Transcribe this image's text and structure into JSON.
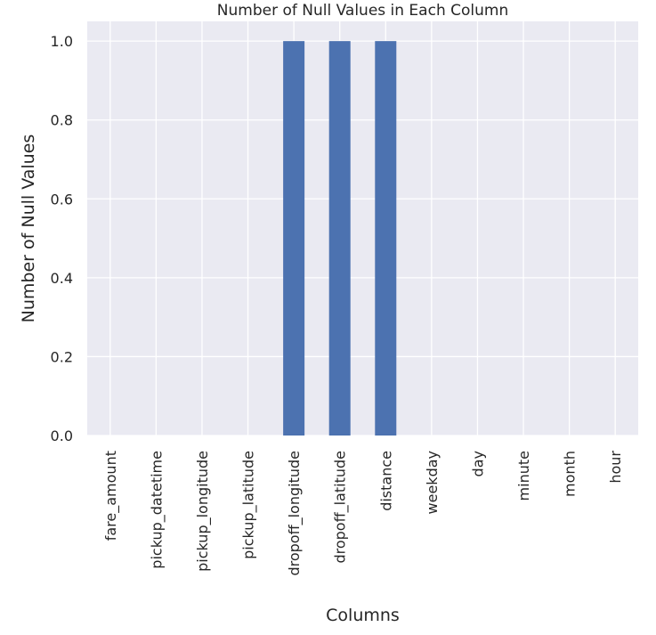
{
  "chart_data": {
    "type": "bar",
    "title": "Number of Null Values in Each Column",
    "xlabel": "Columns",
    "ylabel": "Number of Null Values",
    "categories": [
      "fare_amount",
      "pickup_datetime",
      "pickup_longitude",
      "pickup_latitude",
      "dropoff_longitude",
      "dropoff_latitude",
      "distance",
      "weekday",
      "day",
      "minute",
      "month",
      "hour"
    ],
    "values": [
      0,
      0,
      0,
      0,
      1,
      1,
      1,
      0,
      0,
      0,
      0,
      0
    ],
    "ylim": [
      0,
      1.05
    ],
    "yticks": [
      "0.0",
      "0.2",
      "0.4",
      "0.6",
      "0.8",
      "1.0"
    ],
    "grid": true,
    "colors": {
      "bar": "#4c72b0",
      "plot_background": "#eaeaf2",
      "grid": "#ffffff"
    }
  }
}
